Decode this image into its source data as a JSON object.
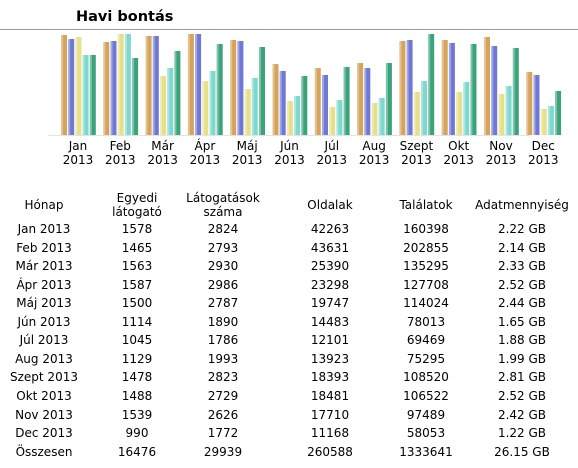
{
  "header": {
    "title": "Havi bontás"
  },
  "colors": {
    "visitors": "#d6a35a",
    "visits": "#6f78d6",
    "pages": "#e6e08a",
    "hits": "#7fd8cf",
    "bandwidth": "#3aa37a"
  },
  "chart_data": {
    "type": "bar",
    "categories": [
      "Jan 2013",
      "Feb 2013",
      "Már 2013",
      "Ápr 2013",
      "Máj 2013",
      "Jún 2013",
      "Júl 2013",
      "Aug 2013",
      "Szept 2013",
      "Okt 2013",
      "Nov 2013",
      "Dec 2013"
    ],
    "x_tick_labels": [
      [
        "Jan",
        "2013"
      ],
      [
        "Feb",
        "2013"
      ],
      [
        "Már",
        "2013"
      ],
      [
        "Ápr",
        "2013"
      ],
      [
        "Máj",
        "2013"
      ],
      [
        "Jún",
        "2013"
      ],
      [
        "Júl",
        "2013"
      ],
      [
        "Aug",
        "2013"
      ],
      [
        "Szept",
        "2013"
      ],
      [
        "Okt",
        "2013"
      ],
      [
        "Nov",
        "2013"
      ],
      [
        "Dec",
        "2013"
      ]
    ],
    "series": [
      {
        "name": "Egyedi látogató",
        "color": "#d6a35a",
        "values": [
          1578,
          1465,
          1563,
          1587,
          1500,
          1114,
          1045,
          1129,
          1478,
          1488,
          1539,
          990
        ]
      },
      {
        "name": "Látogatások száma",
        "color": "#6f78d6",
        "values": [
          2824,
          2793,
          2930,
          2986,
          2787,
          1890,
          1786,
          1993,
          2823,
          2729,
          2626,
          1772
        ]
      },
      {
        "name": "Oldalak",
        "color": "#e6e08a",
        "values": [
          42263,
          43631,
          25390,
          23298,
          19747,
          14483,
          12101,
          13923,
          18393,
          18481,
          17710,
          11168
        ]
      },
      {
        "name": "Találatok",
        "color": "#7fd8cf",
        "values": [
          160398,
          202855,
          135295,
          127708,
          114024,
          78013,
          69469,
          75295,
          108520,
          106522,
          97489,
          58053
        ]
      },
      {
        "name": "Adatmennyiség",
        "color": "#3aa37a",
        "unit": "GB",
        "values": [
          2.22,
          2.14,
          2.33,
          2.52,
          2.44,
          1.65,
          1.88,
          1.99,
          2.81,
          2.52,
          2.42,
          1.22
        ]
      }
    ]
  },
  "table": {
    "headers": [
      [
        "Hónap"
      ],
      [
        "Egyedi",
        "látogató"
      ],
      [
        "Látogatások",
        "száma"
      ],
      [
        "Oldalak"
      ],
      [
        "Találatok"
      ],
      [
        "Adatmennyiség"
      ]
    ],
    "rows": [
      [
        "Jan 2013",
        "1578",
        "2824",
        "42263",
        "160398",
        "2.22 GB"
      ],
      [
        "Feb 2013",
        "1465",
        "2793",
        "43631",
        "202855",
        "2.14 GB"
      ],
      [
        "Már 2013",
        "1563",
        "2930",
        "25390",
        "135295",
        "2.33 GB"
      ],
      [
        "Ápr 2013",
        "1587",
        "2986",
        "23298",
        "127708",
        "2.52 GB"
      ],
      [
        "Máj 2013",
        "1500",
        "2787",
        "19747",
        "114024",
        "2.44 GB"
      ],
      [
        "Jún 2013",
        "1114",
        "1890",
        "14483",
        "78013",
        "1.65 GB"
      ],
      [
        "Júl 2013",
        "1045",
        "1786",
        "12101",
        "69469",
        "1.88 GB"
      ],
      [
        "Aug 2013",
        "1129",
        "1993",
        "13923",
        "75295",
        "1.99 GB"
      ],
      [
        "Szept 2013",
        "1478",
        "2823",
        "18393",
        "108520",
        "2.81 GB"
      ],
      [
        "Okt 2013",
        "1488",
        "2729",
        "18481",
        "106522",
        "2.52 GB"
      ],
      [
        "Nov 2013",
        "1539",
        "2626",
        "17710",
        "97489",
        "2.42 GB"
      ],
      [
        "Dec 2013",
        "990",
        "1772",
        "11168",
        "58053",
        "1.22 GB"
      ]
    ],
    "total": [
      "Összesen",
      "16476",
      "29939",
      "260588",
      "1333641",
      "26.15 GB"
    ]
  }
}
